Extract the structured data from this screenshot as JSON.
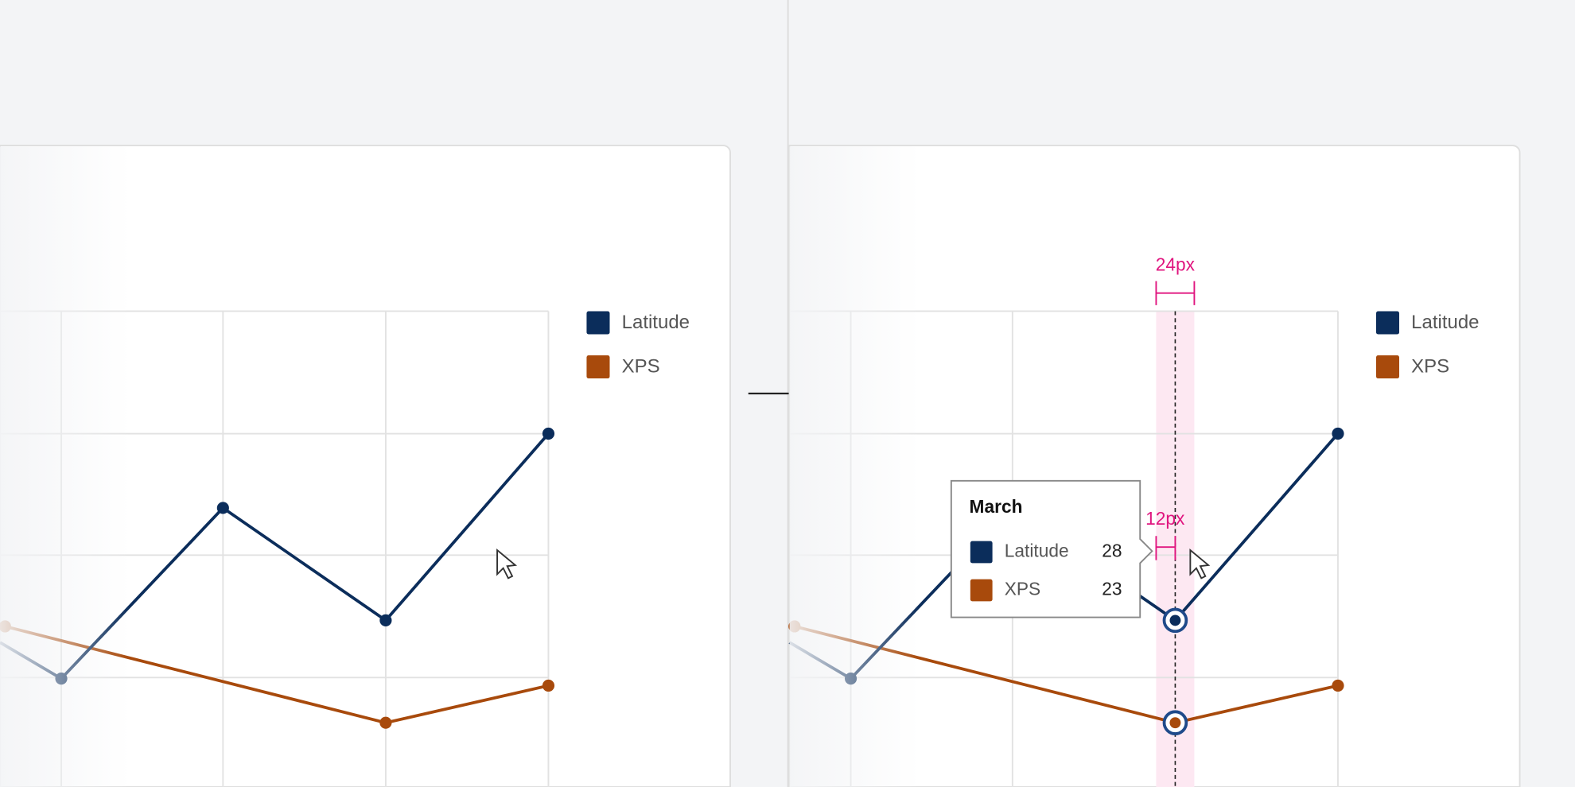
{
  "left": {
    "legend": [
      "Latitude",
      "XPS"
    ]
  },
  "right": {
    "legend": [
      "Latitude",
      "XPS"
    ],
    "tooltip": {
      "title": "March",
      "rows": [
        {
          "label": "Latitude",
          "value": 28
        },
        {
          "label": "XPS",
          "value": 23
        }
      ]
    },
    "annotations": [
      "24px",
      "12px"
    ]
  }
}
